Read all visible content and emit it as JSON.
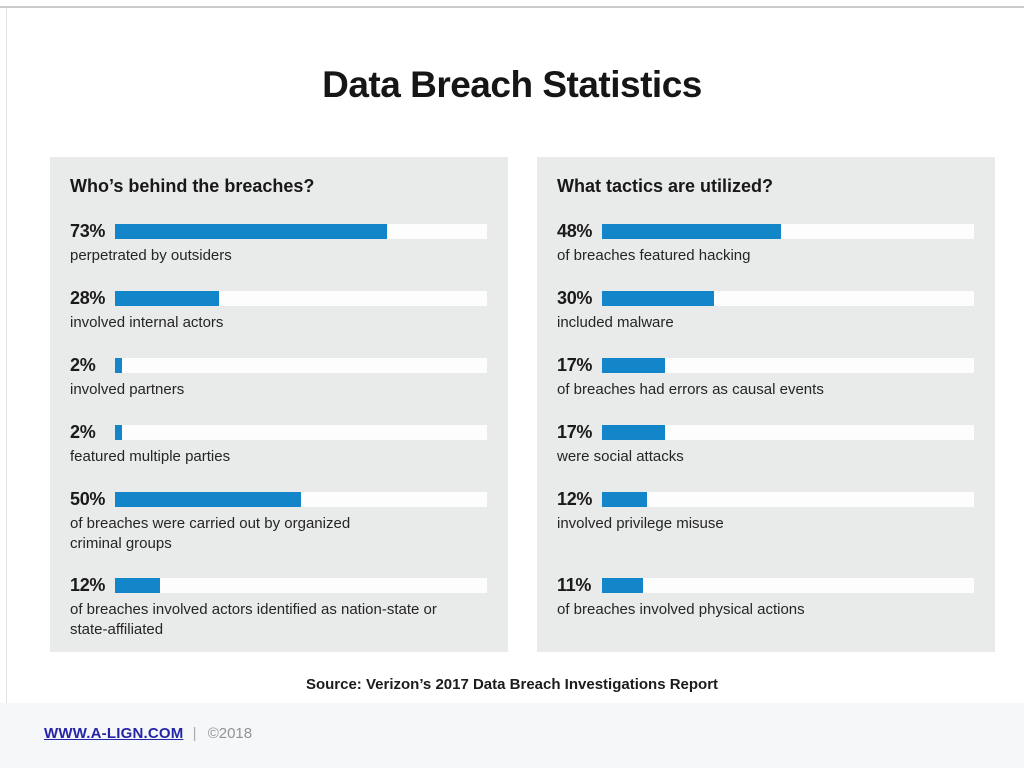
{
  "title": "Data Breach Statistics",
  "source": "Source: Verizon’s 2017 Data Breach Investigations Report",
  "footer": {
    "link_text": "WWW.A-LIGN.COM",
    "separator": "|",
    "copyright": "©2018"
  },
  "colors": {
    "bar_fill": "#1286c8",
    "bar_track": "#fdfdfd",
    "panel_bg": "#e9eaea",
    "footer_bg": "#f6f7f9",
    "link_navy": "#2525a8"
  },
  "panels": [
    {
      "title": "Who’s behind the breaches?",
      "items": [
        {
          "label": "73%",
          "value": 73,
          "desc": "perpetrated by outsiders"
        },
        {
          "label": "28%",
          "value": 28,
          "desc": "involved internal actors"
        },
        {
          "label": "2%",
          "value": 2,
          "desc": "involved partners"
        },
        {
          "label": "2%",
          "value": 2,
          "desc": "featured multiple parties"
        },
        {
          "label": "50%",
          "value": 50,
          "desc": "of breaches were carried out by organized\ncriminal groups"
        },
        {
          "label": "12%",
          "value": 12,
          "desc": "of breaches involved actors identified as nation-state or\nstate-affiliated"
        }
      ]
    },
    {
      "title": "What tactics are utilized?",
      "items": [
        {
          "label": "48%",
          "value": 48,
          "desc": "of breaches featured hacking"
        },
        {
          "label": "30%",
          "value": 30,
          "desc": "included malware"
        },
        {
          "label": "17%",
          "value": 17,
          "desc": "of breaches had errors as causal events"
        },
        {
          "label": "17%",
          "value": 17,
          "desc": "were social attacks"
        },
        {
          "label": "12%",
          "value": 12,
          "desc": "involved privilege misuse"
        },
        {
          "label": "11%",
          "value": 11,
          "desc": "of breaches involved physical actions"
        }
      ]
    }
  ],
  "chart_data": [
    {
      "type": "bar",
      "orientation": "horizontal",
      "title": "Who’s behind the breaches?",
      "categories": [
        "perpetrated by outsiders",
        "involved internal actors",
        "involved partners",
        "featured multiple parties",
        "of breaches were carried out by organized criminal groups",
        "of breaches involved actors identified as nation-state or state-affiliated"
      ],
      "values": [
        73,
        28,
        2,
        2,
        50,
        12
      ],
      "data_labels": [
        "73%",
        "28%",
        "2%",
        "2%",
        "50%",
        "12%"
      ],
      "value_unit": "%",
      "xlim": [
        0,
        100
      ],
      "grid": false,
      "legend": false
    },
    {
      "type": "bar",
      "orientation": "horizontal",
      "title": "What tactics are utilized?",
      "categories": [
        "of breaches featured hacking",
        "included malware",
        "of breaches had errors as causal events",
        "were social attacks",
        "involved privilege misuse",
        "of breaches involved physical actions"
      ],
      "values": [
        48,
        30,
        17,
        17,
        12,
        11
      ],
      "data_labels": [
        "48%",
        "30%",
        "17%",
        "17%",
        "12%",
        "11%"
      ],
      "value_unit": "%",
      "xlim": [
        0,
        100
      ],
      "grid": false,
      "legend": false
    }
  ]
}
